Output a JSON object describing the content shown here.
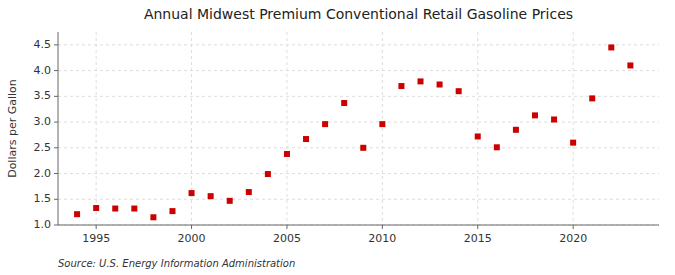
{
  "chart_data": {
    "type": "scatter",
    "title": "Annual Midwest Premium Conventional Retail Gasoline Prices",
    "ylabel": "Dollars per Gallon",
    "annotation": "Source: U.S. Energy Information Administration",
    "x": [
      1994,
      1995,
      1996,
      1997,
      1998,
      1999,
      2000,
      2001,
      2002,
      2003,
      2004,
      2005,
      2006,
      2007,
      2008,
      2009,
      2010,
      2011,
      2012,
      2013,
      2014,
      2015,
      2016,
      2017,
      2018,
      2019,
      2020,
      2021,
      2022,
      2023
    ],
    "values": [
      1.21,
      1.33,
      1.32,
      1.32,
      1.15,
      1.27,
      1.62,
      1.56,
      1.47,
      1.64,
      1.99,
      2.38,
      2.67,
      2.96,
      3.37,
      2.5,
      2.96,
      3.7,
      3.79,
      3.73,
      3.6,
      2.72,
      2.51,
      2.85,
      3.13,
      3.05,
      2.6,
      3.46,
      4.45,
      4.1
    ],
    "color": "#cc0000",
    "marker": "square",
    "xlim": [
      1993.0,
      2024.5
    ],
    "xticks": [
      1995,
      2000,
      2005,
      2010,
      2015,
      2020
    ],
    "ylim": [
      1.0,
      4.75
    ],
    "yticks": [
      {
        "value": 1.0,
        "label": "1.0"
      },
      1.5,
      {
        "value": 2.0,
        "label": "2.0"
      },
      2.5,
      {
        "value": 3.0,
        "label": "3.0"
      },
      3.5,
      {
        "value": 4.0,
        "label": "4.0"
      },
      4.5
    ],
    "grid": true
  }
}
